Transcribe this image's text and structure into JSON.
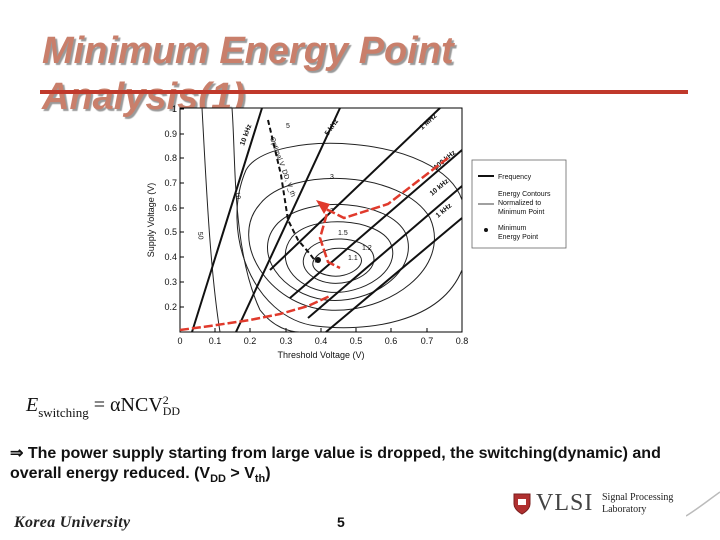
{
  "slide": {
    "title": "Minimum Energy Point Analysis(1)",
    "formula": {
      "lhs": "E",
      "lhs_sub": "switching",
      "rhs_prefix": " = αNCV",
      "rhs_sup": "2",
      "rhs_sub": "DD"
    },
    "bullet": {
      "arrow": "⇒",
      "text_main": " The power supply starting from large value is dropped, the switching(dynamic) and overall energy reduced. (V",
      "sub1": "DD",
      "mid": " > V",
      "sub2": "th",
      "end": ")"
    },
    "footer": {
      "university": "Korea University",
      "page": "5",
      "lab_name": "VLSI",
      "lab_desc_line1": "Signal Processing",
      "lab_desc_line2": "Laboratory"
    },
    "colors": {
      "title": "#c97f6b",
      "rule": "#c0392b",
      "arrow": "#e03a2c"
    }
  },
  "chart_data": {
    "type": "line",
    "title": "",
    "xlabel": "Threshold Voltage (V)",
    "ylabel": "Supply Voltage (V)",
    "xlim": [
      0,
      0.8
    ],
    "ylim": [
      0.1,
      1.0
    ],
    "xticks": [
      "0",
      "0.1",
      "0.2",
      "0.3",
      "0.4",
      "0.5",
      "0.6",
      "0.7",
      "0.8"
    ],
    "yticks": [
      "0.2",
      "0.3",
      "0.4",
      "0.5",
      "0.6",
      "0.7",
      "0.8",
      "0.9",
      "1"
    ],
    "series": [
      {
        "name": "Frequency",
        "kind": "iso-frequency",
        "labels": [
          "10 kHz",
          "5 kHz",
          "1 MHz",
          "100 kHz",
          "10 kHz",
          "1 kHz"
        ]
      },
      {
        "name": "Energy Contours Normalized to Minimum Point",
        "kind": "contour",
        "labels": [
          "1.1",
          "1.2",
          "1.5",
          "2",
          "3",
          "5",
          "10",
          "50"
        ]
      },
      {
        "name": "Minimum Energy Point",
        "kind": "locus",
        "x": [
          0.25,
          0.29,
          0.31,
          0.34,
          0.37,
          0.39
        ],
        "y": [
          0.95,
          0.74,
          0.6,
          0.5,
          0.43,
          0.38
        ]
      }
    ],
    "annotations": [
      "Optimal V_DD, V_th"
    ],
    "legend": [
      "Frequency",
      "Energy Contours Normalized to Minimum Point",
      "Minimum Energy Point"
    ],
    "legend_position": "right"
  }
}
